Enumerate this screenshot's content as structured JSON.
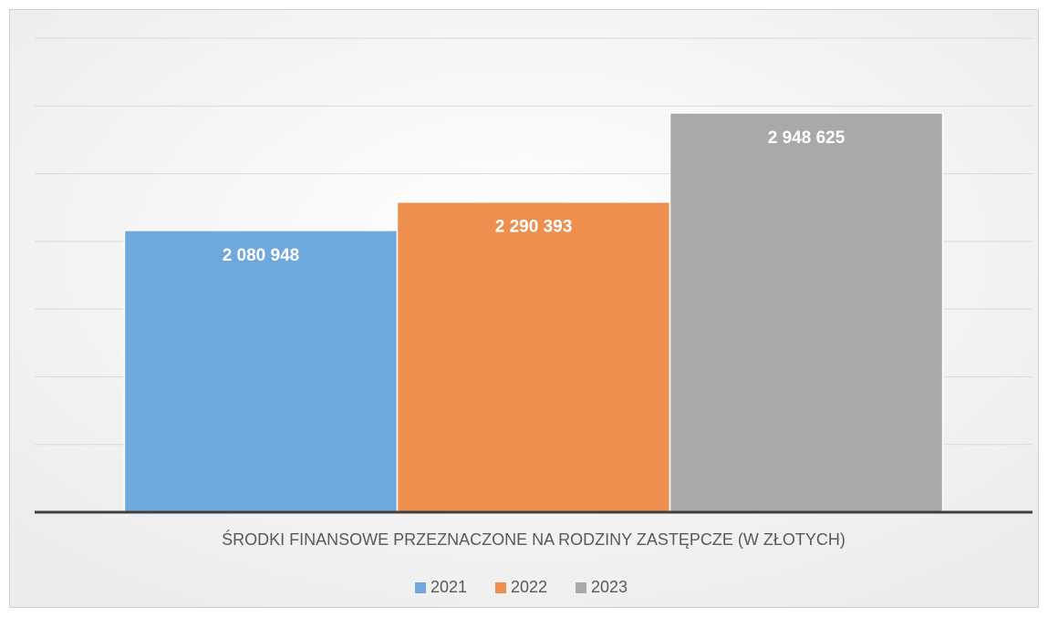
{
  "chart_data": {
    "type": "bar",
    "categories": [
      "ŚRODKI FINANSOWE PRZEZNACZONE NA RODZINY ZASTĘPCZE (W ZŁOTYCH)"
    ],
    "series": [
      {
        "name": "2021",
        "color": "#6fa8dc",
        "values": [
          2080948
        ],
        "value_labels": [
          "2 080 948"
        ]
      },
      {
        "name": "2022",
        "color": "#ef8f4f",
        "values": [
          2290393
        ],
        "value_labels": [
          "2 290 393"
        ]
      },
      {
        "name": "2023",
        "color": "#a9a9a9",
        "values": [
          2948625
        ],
        "value_labels": [
          "2 948 625"
        ]
      }
    ],
    "ylim": [
      0,
      3500000
    ],
    "yticks": [
      0,
      500000,
      1000000,
      1500000,
      2000000,
      2500000,
      3000000,
      3500000
    ],
    "grid": true,
    "legend": "bottom"
  }
}
